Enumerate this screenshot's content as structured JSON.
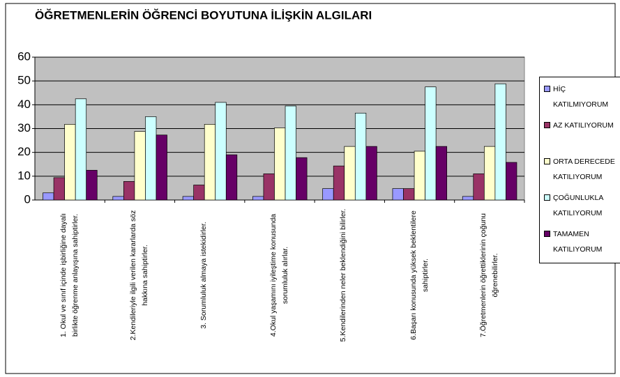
{
  "chart_data": {
    "type": "bar",
    "title": "ÖĞRETMENLERİN ÖĞRENCİ BOYUTUNA İLİŞKİN ALGILARI",
    "categories": [
      "1. Okul ve sınıf içinde işbirliğine dayalı birlikte öğrenme anlayışına sahiptirler.",
      "2.Kendileriyle ilgili verilen kararlarda söz hakkına sahiptirler.",
      "3. Sorumluluk almaya istekidirler.",
      "4.Okul yaşamını iyileştime konusunda sorumluluk alırlar.",
      "5.Kendilerinden neler beklendiğini bilirler.",
      "6.Başarı konusunda yüksek beklentilere sahiptirler.",
      "7.Öğretmenlerin öğrettiklerinin çoğunu öğrenebilirler."
    ],
    "series": [
      {
        "name": "HİÇ KATILMIYORUM",
        "color": "#9999ff",
        "values": [
          3,
          1.5,
          1.5,
          1.5,
          4.8,
          4.8,
          1.5
        ]
      },
      {
        "name": "AZ KATILIYORUM",
        "color": "#993366",
        "values": [
          9.4,
          7.8,
          6.3,
          11,
          14.3,
          4.8,
          11
        ]
      },
      {
        "name": "ORTA DERECEDE KATILIYORUM",
        "color": "#ffffcc",
        "values": [
          31.8,
          28.8,
          31.8,
          30.3,
          22.5,
          20.5,
          22.5
        ]
      },
      {
        "name": "ÇOĞUNLUKLA KATILIYORUM",
        "color": "#ccffff",
        "values": [
          42.5,
          35,
          41,
          39.5,
          36.5,
          47.5,
          48.8
        ]
      },
      {
        "name": "TAMAMEN KATILIYORUM",
        "color": "#660066",
        "values": [
          12.5,
          27.3,
          19,
          17.8,
          22.5,
          22.5,
          15.8
        ]
      }
    ],
    "ylim": [
      0,
      60
    ],
    "yticks": [
      0,
      10,
      20,
      30,
      40,
      50,
      60
    ],
    "grid": true,
    "legend": "right"
  }
}
